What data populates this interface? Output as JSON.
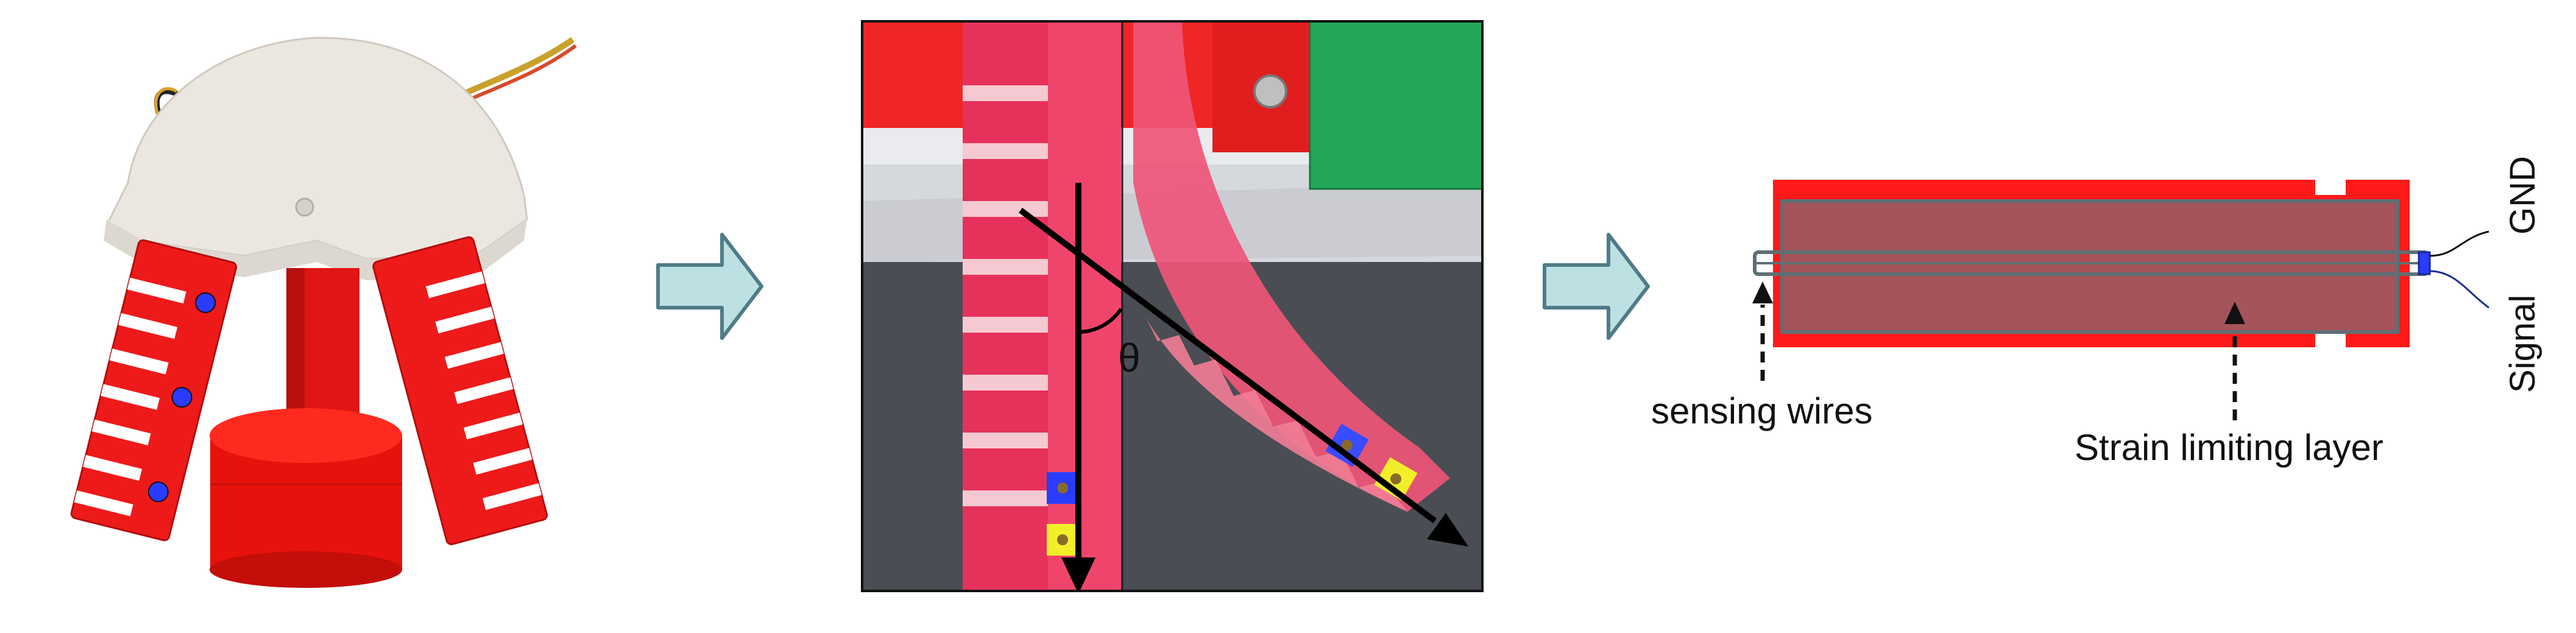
{
  "panels": {
    "gripper_photo": {
      "description": ""
    },
    "bending_photo": {
      "angle_symbol": "θ"
    },
    "sensor_schematic": {
      "label_sensing_wires": "sensing wires",
      "label_strain_limiting_layer": "Strain limiting layer",
      "label_gnd": "GND",
      "label_signal": "Signal"
    }
  },
  "colors": {
    "actuator_red": "#ff1a1a",
    "actuator_pink": "#f23c5e",
    "strain_layer": "#a4545a",
    "layer_outline": "#5f6f74",
    "arrow_fill": "#bde1e3",
    "arrow_stroke": "#4e7c86",
    "marker_blue": "#2a3cff",
    "marker_yellow": "#f2ef2a",
    "wire_blue": "#1b2a9a"
  }
}
